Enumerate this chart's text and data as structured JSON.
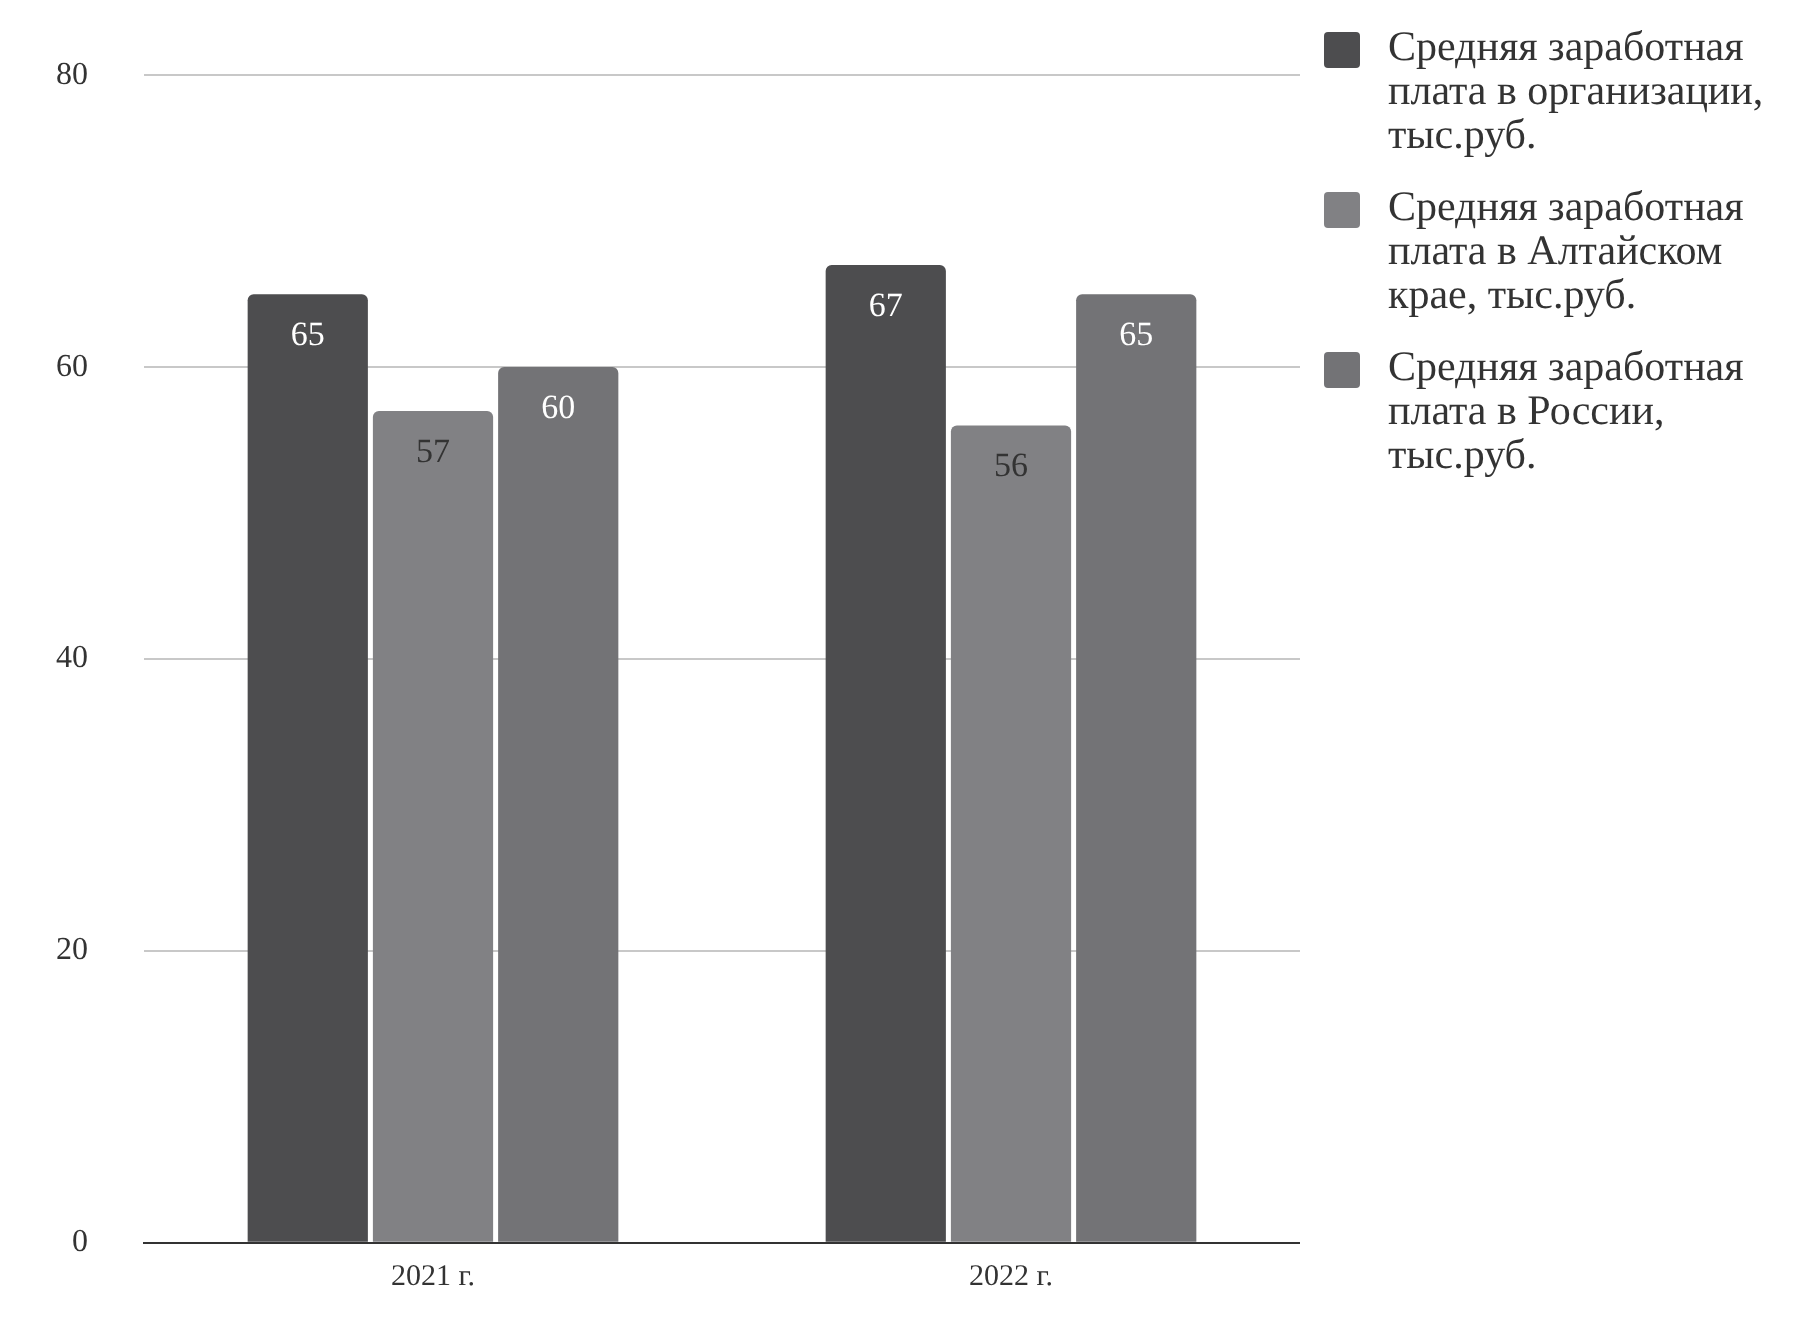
{
  "chart_data": {
    "type": "bar",
    "categories": [
      "2021 г.",
      "2022 г."
    ],
    "series": [
      {
        "name": "Средняя заработная плата в организации, тыс.руб.",
        "color": "#4d4d4f",
        "values": [
          65,
          67
        ]
      },
      {
        "name": "Средняя заработная плата в Алтайском крае, тыс.руб.",
        "color": "#818184",
        "values": [
          57,
          56
        ]
      },
      {
        "name": "Средняя заработная плата в России, тыс.руб.",
        "color": "#737376",
        "values": [
          60,
          65
        ]
      }
    ],
    "ylim": [
      0,
      80
    ],
    "yticks": [
      0,
      20,
      40,
      60,
      80
    ],
    "grid": "y",
    "legend": "right",
    "data_labels": true
  }
}
